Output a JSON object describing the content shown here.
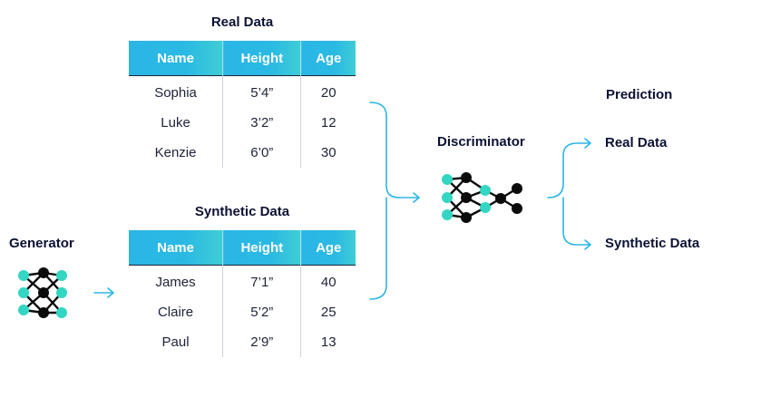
{
  "real_table": {
    "title": "Real Data",
    "headers": [
      "Name",
      "Height",
      "Age"
    ],
    "rows": [
      [
        "Sophia",
        "5’4”",
        "20"
      ],
      [
        "Luke",
        "3’2”",
        "12"
      ],
      [
        "Kenzie",
        "6’0”",
        "30"
      ]
    ]
  },
  "synthetic_table": {
    "title": "Synthetic Data",
    "headers": [
      "Name",
      "Height",
      "Age"
    ],
    "rows": [
      [
        "James",
        "7’1”",
        "40"
      ],
      [
        "Claire",
        "5’2”",
        "25"
      ],
      [
        "Paul",
        "2’9”",
        "13"
      ]
    ]
  },
  "generator": {
    "label": "Generator"
  },
  "discriminator": {
    "label": "Discriminator"
  },
  "prediction": {
    "heading": "Prediction",
    "outcomes": [
      "Real Data",
      "Synthetic Data"
    ]
  },
  "colors": {
    "accent": "#2bb6e6",
    "node_teal": "#33d6c3",
    "node_dark": "#0b0b0b",
    "text_dark": "#0b1233"
  },
  "icons": [
    "generator-network-icon",
    "discriminator-network-icon"
  ]
}
